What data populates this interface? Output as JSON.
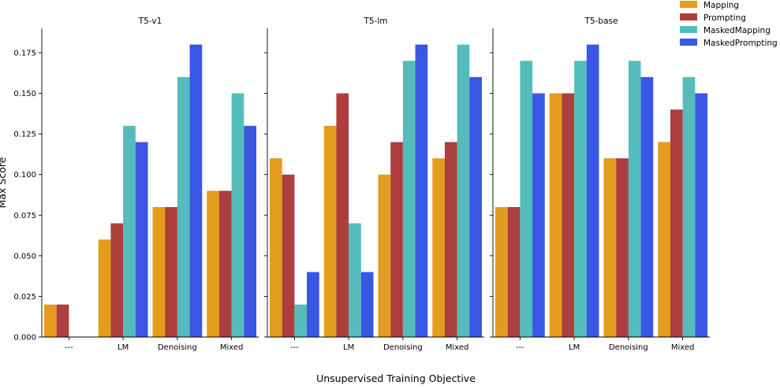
{
  "figure": {
    "xlabel": "Unsupervised Training Objective",
    "ylabel": "Max Score"
  },
  "legend": {
    "placement": "top-right",
    "entries": [
      {
        "name": "Mapping",
        "color": "#e39c1d"
      },
      {
        "name": "Prompting",
        "color": "#ac3e3e"
      },
      {
        "name": "MaskedMapping",
        "color": "#55bcbc"
      },
      {
        "name": "MaskedPrompting",
        "color": "#3a56e4"
      }
    ]
  },
  "chart_data": [
    {
      "type": "bar",
      "title": "T5-v1",
      "categories": [
        "---",
        "LM",
        "Denoising",
        "Mixed"
      ],
      "ylim": [
        0,
        0.19
      ],
      "yticks": [
        "0.000",
        "0.025",
        "0.050",
        "0.075",
        "0.100",
        "0.125",
        "0.150",
        "0.175"
      ],
      "series": [
        {
          "name": "Mapping",
          "color": "#e39c1d",
          "values": [
            0.02,
            0.06,
            0.08,
            0.09
          ]
        },
        {
          "name": "Prompting",
          "color": "#ac3e3e",
          "values": [
            0.02,
            0.07,
            0.08,
            0.09
          ]
        },
        {
          "name": "MaskedMapping",
          "color": "#55bcbc",
          "values": [
            0.0,
            0.13,
            0.16,
            0.15
          ]
        },
        {
          "name": "MaskedPrompting",
          "color": "#3a56e4",
          "values": [
            0.0,
            0.12,
            0.18,
            0.13
          ]
        }
      ]
    },
    {
      "type": "bar",
      "title": "T5-lm",
      "categories": [
        "---",
        "LM",
        "Denoising",
        "Mixed"
      ],
      "ylim": [
        0,
        0.19
      ],
      "series": [
        {
          "name": "Mapping",
          "color": "#e39c1d",
          "values": [
            0.11,
            0.13,
            0.1,
            0.11
          ]
        },
        {
          "name": "Prompting",
          "color": "#ac3e3e",
          "values": [
            0.1,
            0.15,
            0.12,
            0.12
          ]
        },
        {
          "name": "MaskedMapping",
          "color": "#55bcbc",
          "values": [
            0.02,
            0.07,
            0.17,
            0.18
          ]
        },
        {
          "name": "MaskedPrompting",
          "color": "#3a56e4",
          "values": [
            0.04,
            0.04,
            0.18,
            0.16
          ]
        }
      ]
    },
    {
      "type": "bar",
      "title": "T5-base",
      "categories": [
        "---",
        "LM",
        "Denoising",
        "Mixed"
      ],
      "ylim": [
        0,
        0.19
      ],
      "series": [
        {
          "name": "Mapping",
          "color": "#e39c1d",
          "values": [
            0.08,
            0.15,
            0.11,
            0.12
          ]
        },
        {
          "name": "Prompting",
          "color": "#ac3e3e",
          "values": [
            0.08,
            0.15,
            0.11,
            0.14
          ]
        },
        {
          "name": "MaskedMapping",
          "color": "#55bcbc",
          "values": [
            0.17,
            0.17,
            0.17,
            0.16
          ]
        },
        {
          "name": "MaskedPrompting",
          "color": "#3a56e4",
          "values": [
            0.15,
            0.18,
            0.16,
            0.15
          ]
        }
      ]
    }
  ]
}
